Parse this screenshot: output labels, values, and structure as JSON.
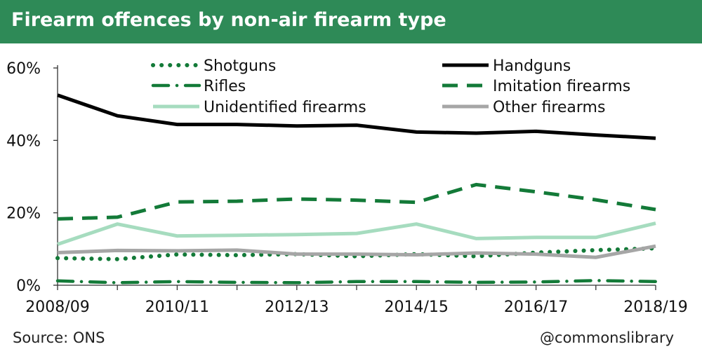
{
  "title": "Firearm offences by non-air firearm type",
  "source": "Source: ONS",
  "credit": "@commonslibrary",
  "colors": {
    "title_bg": "#2e8a57",
    "shotguns": "#137a38",
    "rifles": "#137a38",
    "imitation": "#137a38",
    "handguns": "#000000",
    "unidentified": "#a6dcbf",
    "other": "#a6a6a6"
  },
  "chart_data": {
    "type": "line",
    "title": "Firearm offences by non-air firearm type",
    "xlabel": "",
    "ylabel": "",
    "ylim": [
      0,
      60
    ],
    "yticks": [
      "0%",
      "20%",
      "40%",
      "60%"
    ],
    "ytick_values": [
      0,
      20,
      40,
      60
    ],
    "x": [
      "2008/09",
      "2009/10",
      "2010/11",
      "2011/12",
      "2012/13",
      "2013/14",
      "2014/15",
      "2015/16",
      "2016/17",
      "2017/18",
      "2018/19"
    ],
    "xtick_labels": [
      "2008/09",
      "2010/11",
      "2012/13",
      "2014/15",
      "2016/17",
      "2018/19"
    ],
    "legend_position": "top",
    "grid": false,
    "series": [
      {
        "key": "shotguns",
        "name": "Shotguns",
        "style": "dotted",
        "values": [
          7.5,
          7.2,
          8.5,
          8.3,
          8.6,
          8.0,
          8.6,
          8.0,
          9.0,
          9.7,
          10.2
        ]
      },
      {
        "key": "handguns",
        "name": "Handguns",
        "style": "solid",
        "values": [
          52.5,
          46.8,
          44.4,
          44.4,
          44.0,
          44.2,
          42.3,
          42.0,
          42.5,
          41.5,
          40.6
        ]
      },
      {
        "key": "rifles",
        "name": "Rifles",
        "style": "dashdot",
        "values": [
          1.2,
          0.7,
          1.0,
          0.8,
          0.7,
          1.0,
          1.0,
          0.8,
          0.9,
          1.3,
          1.0
        ]
      },
      {
        "key": "imitation",
        "name": "Imitation firearms",
        "style": "dashed",
        "values": [
          18.3,
          18.8,
          23.0,
          23.2,
          23.8,
          23.5,
          22.9,
          27.8,
          25.8,
          23.6,
          20.9
        ]
      },
      {
        "key": "unidentified",
        "name": "Unidentified firearms",
        "style": "solid",
        "values": [
          11.3,
          16.9,
          13.6,
          13.8,
          14.0,
          14.3,
          16.9,
          12.9,
          13.2,
          13.2,
          17.1
        ]
      },
      {
        "key": "other",
        "name": "Other firearms",
        "style": "solid",
        "values": [
          9.0,
          9.6,
          9.5,
          9.7,
          8.6,
          8.6,
          8.4,
          8.9,
          8.6,
          7.7,
          10.8
        ]
      }
    ]
  }
}
